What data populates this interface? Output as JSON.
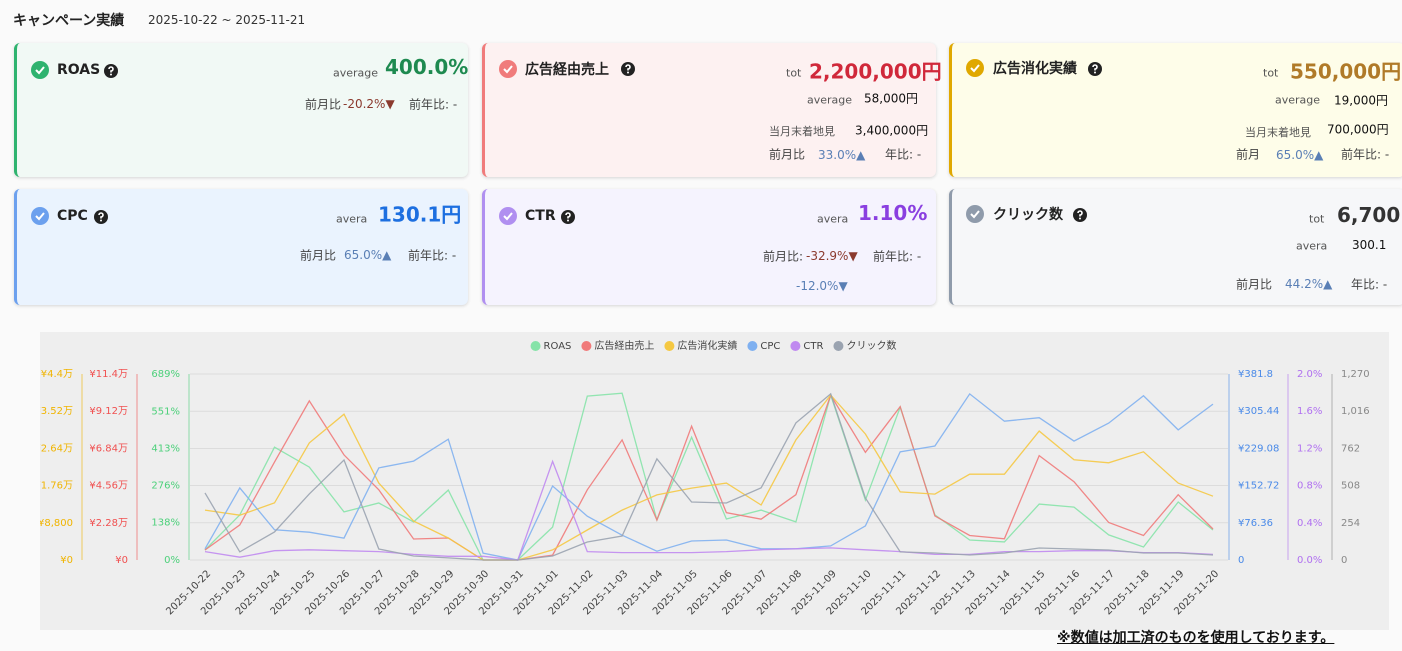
{
  "header": {
    "title": "キャンペーン実績",
    "period": "2025-10-22 ~ 2025-11-21"
  },
  "cards": [
    {
      "title": "ROAS",
      "main_label": "average",
      "main": "400.0%",
      "mom_label": "前月比",
      "mom": "-20.2%▼",
      "yoy": "前年比: -"
    },
    {
      "title": "広告経由売上",
      "main_label": "tot",
      "main": "2,200,000円",
      "avg_label": "average",
      "avg": "58,000円",
      "forecast_label": "当月末着地見",
      "forecast": "3,400,000円",
      "mom_label": "前月比",
      "mom": "33.0%▲",
      "yoy": "年比: -"
    },
    {
      "title": "広告消化実績",
      "main_label": "tot",
      "main": "550,000円",
      "avg_label": "average",
      "avg": "19,000円",
      "forecast_label": "当月末着地見",
      "forecast": "700,000円",
      "mom_label": "前月",
      "mom": "65.0%▲",
      "yoy": "前年比: -"
    },
    {
      "title": "CPC",
      "main_label": "avera",
      "main": "130.1円",
      "mom_label": "前月比",
      "mom": "65.0%▲",
      "yoy": "前年比: -"
    },
    {
      "title": "CTR",
      "main_label": "avera",
      "main": "1.10%",
      "mom_label": "前月比:",
      "mom": "-32.9%▼",
      "yoy": "前年比: -",
      "yoy_value": "-12.0%▼"
    },
    {
      "title": "クリック数",
      "main_label": "tot",
      "main": "6,700",
      "avg_label": "avera",
      "avg": "300.1",
      "mom_label": "前月比",
      "mom": "44.2%▲",
      "yoy": "年比: -"
    }
  ],
  "chart_data": {
    "type": "line",
    "categories": [
      "2025-10-22",
      "2025-10-23",
      "2025-10-24",
      "2025-10-25",
      "2025-10-26",
      "2025-10-27",
      "2025-10-28",
      "2025-10-29",
      "2025-10-30",
      "2025-10-31",
      "2025-11-01",
      "2025-11-02",
      "2025-11-03",
      "2025-11-04",
      "2025-11-05",
      "2025-11-06",
      "2025-11-07",
      "2025-11-08",
      "2025-11-09",
      "2025-11-10",
      "2025-11-11",
      "2025-11-12",
      "2025-11-13",
      "2025-11-14",
      "2025-11-15",
      "2025-11-16",
      "2025-11-17",
      "2025-11-18",
      "2025-11-19",
      "2025-11-20"
    ],
    "legend": "top",
    "grid": true,
    "series": [
      {
        "name": "ROAS",
        "color": "#86e3a8",
        "tick_color": "#4cd07a",
        "axis": "left",
        "ylim": [
          0,
          689
        ],
        "yticks": [
          {
            "value": 0,
            "label": "0%"
          },
          {
            "value": 138,
            "label": "138%"
          },
          {
            "value": 276,
            "label": "276%"
          },
          {
            "value": 413,
            "label": "413%"
          },
          {
            "value": 551,
            "label": "551%"
          },
          {
            "value": 689,
            "label": "689%"
          }
        ],
        "values": [
          37,
          167,
          418,
          344,
          178,
          211,
          141,
          259,
          0,
          0,
          122,
          607,
          618,
          148,
          455,
          152,
          185,
          141,
          611,
          222,
          566,
          167,
          74,
          67,
          207,
          196,
          93,
          48,
          215,
          111
        ]
      },
      {
        "name": "広告経由売上",
        "color": "#f07a7a",
        "tick_color": "#f05050",
        "axis": "left",
        "ylim": [
          0,
          114000
        ],
        "yticks": [
          {
            "value": 0,
            "label": "¥0"
          },
          {
            "value": 22800,
            "label": "¥2.28万"
          },
          {
            "value": 45600,
            "label": "¥4.56万"
          },
          {
            "value": 68400,
            "label": "¥6.84万"
          },
          {
            "value": 91200,
            "label": "¥9.12万"
          },
          {
            "value": 114000,
            "label": "¥11.4万"
          }
        ],
        "values": [
          6100,
          21500,
          60000,
          97500,
          64400,
          43000,
          12900,
          13500,
          0,
          0,
          3000,
          43000,
          73600,
          24500,
          82000,
          29000,
          25000,
          40000,
          101000,
          66000,
          94000,
          27000,
          15000,
          13000,
          64000,
          48000,
          23000,
          15000,
          40000,
          19000
        ]
      },
      {
        "name": "広告消化実績",
        "color": "#f5c842",
        "tick_color": "#f0b400",
        "axis": "left",
        "ylim": [
          0,
          44000
        ],
        "yticks": [
          {
            "value": 0,
            "label": "¥0"
          },
          {
            "value": 8800,
            "label": "¥8,800"
          },
          {
            "value": 17600,
            "label": "¥1.76万"
          },
          {
            "value": 26400,
            "label": "¥2.64万"
          },
          {
            "value": 35200,
            "label": "¥3.52万"
          },
          {
            "value": 44000,
            "label": "¥4.4万"
          }
        ],
        "values": [
          11800,
          10600,
          13500,
          27700,
          34500,
          18200,
          9200,
          5200,
          0,
          0,
          2400,
          7100,
          11800,
          15400,
          17000,
          18200,
          13000,
          28400,
          39000,
          29800,
          16100,
          15600,
          20300,
          20300,
          30500,
          23700,
          23000,
          25600,
          18200,
          15100
        ]
      },
      {
        "name": "CPC",
        "color": "#7fb0f0",
        "tick_color": "#4a8ae8",
        "axis": "right",
        "ylim": [
          0,
          381.8
        ],
        "yticks": [
          {
            "value": 0,
            "label": "0"
          },
          {
            "value": 76.36,
            "label": "¥76.36"
          },
          {
            "value": 152.72,
            "label": "¥152.72"
          },
          {
            "value": 229.08,
            "label": "¥229.08"
          },
          {
            "value": 305.44,
            "label": "¥305.44"
          },
          {
            "value": 381.8,
            "label": "¥381.8"
          }
        ],
        "values": [
          23,
          148,
          62,
          57,
          45,
          189,
          203,
          248,
          14,
          0,
          152,
          90,
          51,
          18,
          39,
          41,
          23,
          23,
          29,
          70,
          222,
          234,
          341,
          285,
          292,
          244,
          281,
          337,
          267,
          320
        ]
      },
      {
        "name": "CTR",
        "color": "#c08af0",
        "tick_color": "#b070f0",
        "axis": "right",
        "ylim": [
          0,
          2.0
        ],
        "yticks": [
          {
            "value": 0,
            "label": "0.0%"
          },
          {
            "value": 0.4,
            "label": "0.4%"
          },
          {
            "value": 0.8,
            "label": "0.8%"
          },
          {
            "value": 1.2,
            "label": "1.2%"
          },
          {
            "value": 1.6,
            "label": "1.6%"
          },
          {
            "value": 2.0,
            "label": "2.0%"
          }
        ],
        "values": [
          0.09,
          0.03,
          0.1,
          0.11,
          0.1,
          0.09,
          0.06,
          0.04,
          0.04,
          0,
          1.06,
          0.09,
          0.08,
          0.08,
          0.08,
          0.09,
          0.11,
          0.12,
          0.13,
          0.11,
          0.09,
          0.06,
          0.06,
          0.09,
          0.09,
          0.1,
          0.1,
          0.08,
          0.08,
          0.06
        ]
      },
      {
        "name": "クリック数",
        "color": "#9aa3b0",
        "tick_color": "#888888",
        "axis": "right",
        "ylim": [
          0,
          1270
        ],
        "yticks": [
          0,
          254,
          508,
          762,
          {
            "value": 1016,
            "label": "1,016"
          },
          {
            "value": 1270,
            "label": "1,270"
          }
        ],
        "values": [
          458,
          55,
          191,
          451,
          683,
          75,
          27,
          14,
          0,
          0,
          27,
          123,
          164,
          690,
          396,
          389,
          492,
          936,
          1134,
          423,
          55,
          48,
          34,
          48,
          82,
          75,
          68,
          48,
          48,
          34
        ]
      }
    ]
  },
  "footnote": "※数値は加工済のものを使用しております。"
}
